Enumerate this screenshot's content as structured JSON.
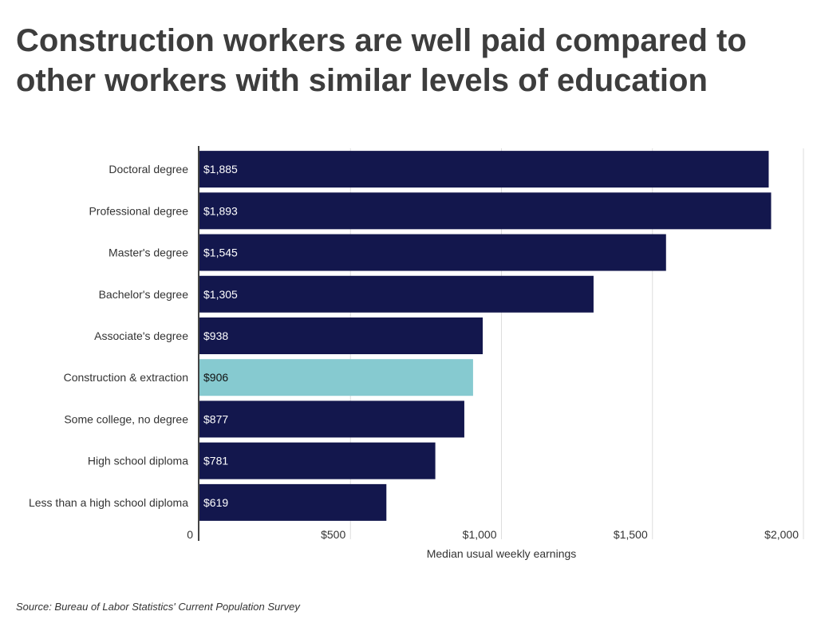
{
  "title": "Construction workers are well paid compared to other workers with similar levels of education",
  "source": "Source:  Bureau of Labor Statistics' Current Population Survey",
  "chart_data": {
    "type": "bar",
    "orientation": "horizontal",
    "categories": [
      "Doctoral degree",
      "Professional degree",
      "Master's degree",
      "Bachelor's degree",
      "Associate's degree",
      "Construction & extraction",
      "Some college, no degree",
      "High school diploma",
      "Less than a high school diploma"
    ],
    "values": [
      1885,
      1893,
      1545,
      1305,
      938,
      906,
      877,
      781,
      619
    ],
    "value_labels": [
      "$1,885",
      "$1,893",
      "$1,545",
      "$1,305",
      "$938",
      "$906",
      "$877",
      "$781",
      "$619"
    ],
    "highlight_index": 5,
    "xlabel": "Median usual weekly earnings",
    "ylabel": "",
    "xlim": [
      0,
      2000
    ],
    "xticks": [
      0,
      500,
      1000,
      1500,
      2000
    ],
    "xtick_labels": [
      "0",
      "$500",
      "$1,000",
      "$1,500",
      "$2,000"
    ],
    "grid": "vertical",
    "colors": {
      "bar": "#13174d",
      "highlight": "#86cad0",
      "label": "#ffffff",
      "highlight_label": "#111111",
      "grid": "#dddddd",
      "axis": "#444444",
      "text": "#333333"
    }
  }
}
